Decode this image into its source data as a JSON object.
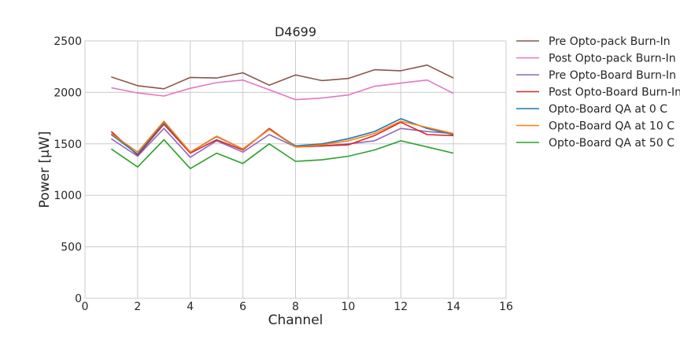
{
  "chart_data": {
    "type": "line",
    "title": "D4699",
    "xlabel": "Channel",
    "ylabel": "Power [μW]",
    "xlim": [
      0,
      16
    ],
    "ylim": [
      0,
      2500
    ],
    "xticks": [
      0,
      2,
      4,
      6,
      8,
      10,
      12,
      14,
      16
    ],
    "yticks": [
      0,
      500,
      1000,
      1500,
      2000,
      2500
    ],
    "grid": true,
    "legend_position": "outside-right",
    "x": [
      1,
      2,
      3,
      4,
      5,
      6,
      7,
      8,
      9,
      10,
      11,
      12,
      13,
      14
    ],
    "series": [
      {
        "name": "Pre Opto-pack Burn-In",
        "color": "#8c564b",
        "values": [
          2150,
          2065,
          2035,
          2145,
          2140,
          2190,
          2070,
          2170,
          2115,
          2135,
          2220,
          2210,
          2265,
          2140
        ]
      },
      {
        "name": "Post Opto-pack Burn-In",
        "color": "#e377c2",
        "values": [
          2045,
          1995,
          1965,
          2040,
          2095,
          2120,
          2025,
          1930,
          1945,
          1975,
          2060,
          2090,
          2120,
          1990
        ]
      },
      {
        "name": "Pre Opto-Board Burn-In",
        "color": "#9467bd",
        "values": [
          1550,
          1380,
          1650,
          1370,
          1530,
          1420,
          1590,
          1470,
          1480,
          1500,
          1530,
          1650,
          1620,
          1600
        ]
      },
      {
        "name": "Post Opto-Board Burn-In",
        "color": "#d62728",
        "values": [
          1620,
          1390,
          1690,
          1410,
          1540,
          1440,
          1650,
          1470,
          1480,
          1490,
          1580,
          1710,
          1590,
          1580
        ]
      },
      {
        "name": "Opto-Board QA at 0 C",
        "color": "#1f77b4",
        "values": [
          1590,
          1400,
          1710,
          1420,
          1570,
          1450,
          1640,
          1480,
          1500,
          1550,
          1620,
          1745,
          1650,
          1590
        ]
      },
      {
        "name": "Opto-Board QA at 10 C",
        "color": "#ff7f0e",
        "values": [
          1600,
          1420,
          1720,
          1420,
          1575,
          1450,
          1640,
          1470,
          1490,
          1530,
          1600,
          1720,
          1660,
          1600
        ]
      },
      {
        "name": "Opto-Board QA at 50 C",
        "color": "#2ca02c",
        "values": [
          1450,
          1275,
          1540,
          1260,
          1410,
          1310,
          1500,
          1330,
          1345,
          1380,
          1440,
          1530,
          1470,
          1410
        ]
      }
    ]
  }
}
